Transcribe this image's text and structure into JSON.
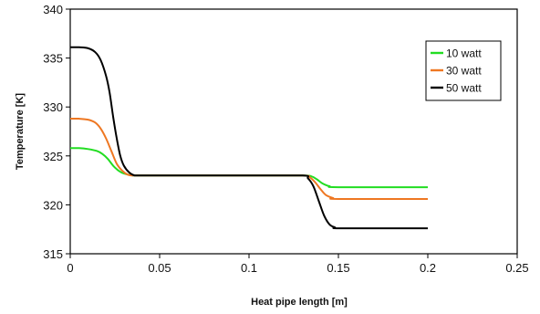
{
  "chart_data": {
    "type": "line",
    "title": "",
    "xlabel": "Heat pipe length [m]",
    "ylabel": "Temperature [K]",
    "xlim": [
      0,
      0.25
    ],
    "ylim": [
      315,
      340
    ],
    "xticks": [
      0,
      0.05,
      0.1,
      0.15,
      0.2,
      0.25
    ],
    "xtick_labels": [
      "0",
      "0.05",
      "0.1",
      "0.15",
      "0.2",
      "0.25"
    ],
    "yticks": [
      315,
      320,
      325,
      330,
      335,
      340
    ],
    "ytick_labels": [
      "315",
      "320",
      "325",
      "330",
      "335",
      "340"
    ],
    "grid": false,
    "legend_position": "top-right",
    "series": [
      {
        "name": "10 watt",
        "color": "#22dd22",
        "x": [
          0,
          0.005,
          0.01,
          0.015,
          0.018,
          0.021,
          0.024,
          0.027,
          0.03,
          0.035,
          0.04,
          0.05,
          0.1,
          0.13,
          0.135,
          0.138,
          0.141,
          0.145,
          0.15,
          0.2
        ],
        "y": [
          325.8,
          325.8,
          325.7,
          325.5,
          325.2,
          324.7,
          324.0,
          323.5,
          323.2,
          323.0,
          323.0,
          323.0,
          323.0,
          323.0,
          322.9,
          322.6,
          322.2,
          321.9,
          321.8,
          321.8
        ]
      },
      {
        "name": "30 watt",
        "color": "#ee7722",
        "x": [
          0,
          0.005,
          0.01,
          0.014,
          0.017,
          0.02,
          0.023,
          0.026,
          0.029,
          0.032,
          0.035,
          0.04,
          0.05,
          0.1,
          0.13,
          0.134,
          0.137,
          0.14,
          0.143,
          0.147,
          0.15,
          0.2
        ],
        "y": [
          328.8,
          328.8,
          328.7,
          328.4,
          327.8,
          326.8,
          325.5,
          324.2,
          323.5,
          323.1,
          323.0,
          323.0,
          323.0,
          323.0,
          323.0,
          322.8,
          322.3,
          321.6,
          321.0,
          320.7,
          320.6,
          320.6
        ]
      },
      {
        "name": "50 watt",
        "color": "#000000",
        "x": [
          0,
          0.005,
          0.01,
          0.014,
          0.017,
          0.02,
          0.022,
          0.024,
          0.026,
          0.028,
          0.03,
          0.033,
          0.036,
          0.04,
          0.05,
          0.1,
          0.13,
          0.133,
          0.136,
          0.139,
          0.142,
          0.145,
          0.148,
          0.152,
          0.2
        ],
        "y": [
          336.1,
          336.1,
          336.0,
          335.6,
          334.8,
          333.2,
          331.5,
          329.0,
          326.8,
          325.0,
          324.0,
          323.3,
          323.0,
          323.0,
          323.0,
          323.0,
          323.0,
          322.7,
          321.9,
          320.4,
          318.9,
          318.0,
          317.7,
          317.6,
          317.6
        ]
      }
    ]
  }
}
